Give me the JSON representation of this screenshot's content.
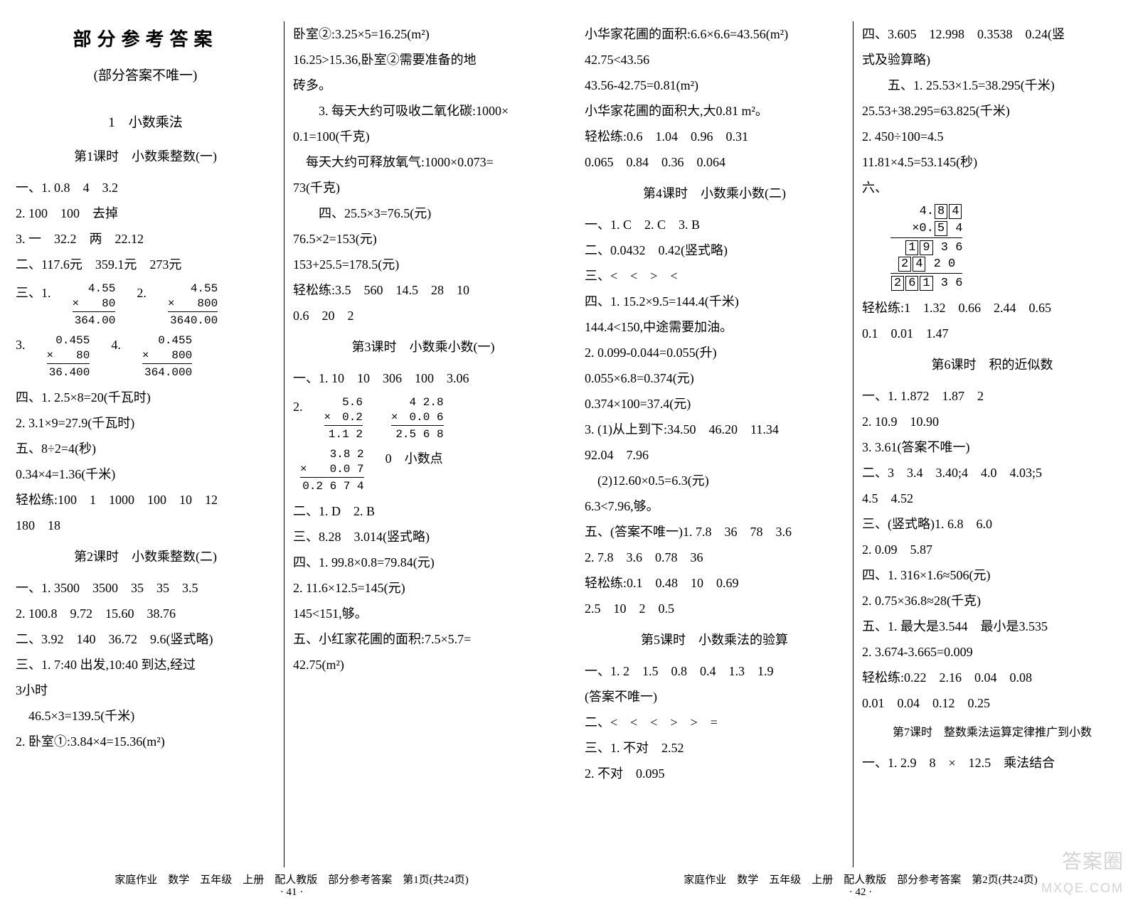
{
  "title": "部分参考答案",
  "subtitle": "(部分答案不唯一)",
  "chapter1": "1　小数乘法",
  "p1c1": {
    "lesson1": "第1课时　小数乘整数(一)",
    "l1": "一、1. 0.8　4　3.2",
    "l2": "2. 100　100　去掉",
    "l3": "3. 一　32.2　两　22.12",
    "l4": "二、117.6元　359.1元　273元",
    "l5": "三、1.",
    "calc1a": "4.55",
    "calc1b": "×　　80",
    "calc1c": "364.00",
    "calc2a": "4.55",
    "calc2b": "×　　800",
    "calc2c": "3640.00",
    "l5b": "2.",
    "calc3a": "0.455",
    "calc3b": "×　　80",
    "calc3c": "36.400",
    "calc4a": "0.455",
    "calc4b": "×　　800",
    "calc4c": "364.000",
    "l5c": "3.",
    "l5d": "4.",
    "l6": "四、1. 2.5×8=20(千瓦时)",
    "l7": "2. 3.1×9=27.9(千瓦时)",
    "l8": "五、8÷2=4(秒)",
    "l9": "0.34×4=1.36(千米)",
    "l10": "轻松练:100　1　1000　100　10　12",
    "l11": "180　18",
    "lesson2": "第2课时　小数乘整数(二)",
    "l12": "一、1. 3500　3500　35　35　3.5",
    "l13": "2. 100.8　9.72　15.60　38.76",
    "l14": "二、3.92　140　36.72　9.6(竖式略)",
    "l15": "三、1. 7:40 出发,10:40 到达,经过",
    "l16": "3小时",
    "l17": "　46.5×3=139.5(千米)",
    "l18": "2. 卧室①:3.84×4=15.36(m²)"
  },
  "p1c2": {
    "l1": "卧室②:3.25×5=16.25(m²)",
    "l2": "16.25>15.36,卧室②需要准备的地",
    "l3": "砖多。",
    "l4": "3. 每天大约可吸收二氧化碳:1000×",
    "l5": "0.1=100(千克)",
    "l6": "　每天大约可释放氧气:1000×0.073=",
    "l7": "73(千克)",
    "l8": "四、25.5×3=76.5(元)",
    "l9": "76.5×2=153(元)",
    "l10": "153+25.5=178.5(元)",
    "l11": "轻松练:3.5　560　14.5　28　10",
    "l12": "0.6　20　2",
    "lesson3": "第3课时　小数乘小数(一)",
    "l13": "一、1. 10　10　306　100　3.06",
    "l14": "2.",
    "calc5a": "5.6",
    "calc5b": "×　0.2",
    "calc5c": "1.1 2",
    "calc6a": "4 2.8",
    "calc6b": "×　0.0 6",
    "calc6c": "2.5 6 8",
    "calc7a": "3.8 2",
    "calc7b": "×　　0.0 7",
    "calc7c": "0.2 6 7 4",
    "l14b": "0　小数点",
    "l15": "二、1. D　2. B",
    "l16": "三、8.28　3.014(竖式略)",
    "l17": "四、1. 99.8×0.8=79.84(元)",
    "l18": "2. 11.6×12.5=145(元)",
    "l19": "145<151,够。",
    "l20": "五、小红家花圃的面积:7.5×5.7=",
    "l21": "42.75(m²)"
  },
  "p2c1": {
    "l1": "小华家花圃的面积:6.6×6.6=43.56(m²)",
    "l2": "42.75<43.56",
    "l3": "43.56-42.75=0.81(m²)",
    "l4": "小华家花圃的面积大,大0.81 m²。",
    "l5": "轻松练:0.6　1.04　0.96　0.31",
    "l6": "0.065　0.84　0.36　0.064",
    "lesson4": "第4课时　小数乘小数(二)",
    "l7": "一、1. C　2. C　3. B",
    "l8": "二、0.0432　0.42(竖式略)",
    "l9": "三、<　<　>　<",
    "l10": "四、1. 15.2×9.5=144.4(千米)",
    "l11": "144.4<150,中途需要加油。",
    "l12": "2. 0.099-0.044=0.055(升)",
    "l13": "0.055×6.8=0.374(元)",
    "l14": "0.374×100=37.4(元)",
    "l15": "3. (1)从上到下:34.50　46.20　11.34",
    "l16": "92.04　7.96",
    "l17": "　(2)12.60×0.5=6.3(元)",
    "l18": "6.3<7.96,够。",
    "l19": "五、(答案不唯一)1. 7.8　36　78　3.6",
    "l20": "2. 7.8　3.6　0.78　36",
    "l21": "轻松练:0.1　0.48　10　0.69",
    "l22": "2.5　10　2　0.5",
    "lesson5": "第5课时　小数乘法的验算",
    "l23": "一、1. 2　1.5　0.8　0.4　1.3　1.9",
    "l24": "(答案不唯一)",
    "l25": "二、<　<　<　>　>　=",
    "l26": "三、1. 不对　2.52",
    "l27": "2. 不对　0.095"
  },
  "p2c2": {
    "l1": "四、3.605　12.998　0.3538　0.24(竖",
    "l2": "式及验算略)",
    "l3": "五、1. 25.53×1.5=38.295(千米)",
    "l4": "25.53+38.295=63.825(千米)",
    "l5": "2. 450÷100=4.5",
    "l6": "11.81×4.5=53.145(秒)",
    "l7": "六、",
    "box1": "4. [8] [4]",
    "box2": "×0. [5]  4",
    "box3": "[1] [9]  3  6",
    "box4": "[2] [4]  2  0",
    "box5": "[2] [6] [1]  3  6",
    "l8": "轻松练:1　1.32　0.66　2.44　0.65",
    "l9": "0.1　0.01　1.47",
    "lesson6": "第6课时　积的近似数",
    "l10": "一、1. 1.872　1.87　2",
    "l11": "2. 10.9　10.90",
    "l12": "3. 3.61(答案不唯一)",
    "l13": "二、3　3.4　3.40;4　4.0　4.03;5",
    "l14": "4.5　4.52",
    "l15": "三、(竖式略)1. 6.8　6.0",
    "l16": "2. 0.09　5.87",
    "l17": "四、1. 316×1.6≈506(元)",
    "l18": "2. 0.75×36.8≈28(千克)",
    "l19": "五、1. 最大是3.544　最小是3.535",
    "l20": "2. 3.674-3.665=0.009",
    "l21": "轻松练:0.22　2.16　0.04　0.08",
    "l22": "0.01　0.04　0.12　0.25",
    "lesson7": "第7课时　整数乘法运算定律推广到小数",
    "l23": "一、1. 2.9　8　×　12.5　乘法结合"
  },
  "footer1": "家庭作业　数学　五年级　上册　配人教版　部分参考答案　第1页(共24页)",
  "footer1p": "· 41 ·",
  "footer2": "家庭作业　数学　五年级　上册　配人教版　部分参考答案　第2页(共24页)",
  "footer2p": "· 42 ·",
  "watermark1": "答案圈",
  "watermark2": "MXQE.COM"
}
